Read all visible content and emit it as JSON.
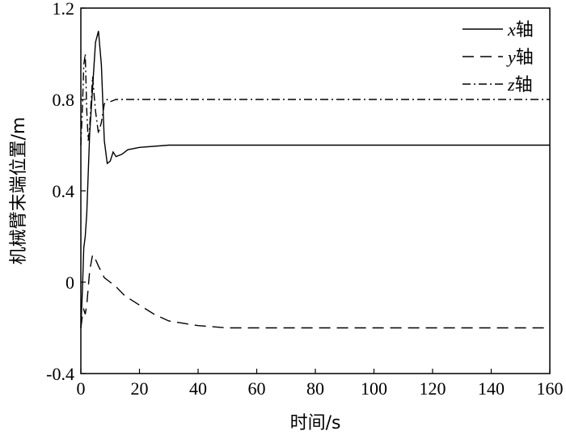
{
  "chart_data": {
    "type": "line",
    "xlabel": "时间/s",
    "ylabel": "机械臂末端位置/m",
    "xlim": [
      0,
      160
    ],
    "ylim": [
      -0.4,
      1.2
    ],
    "x_ticks": [
      "0",
      "20",
      "40",
      "60",
      "80",
      "100",
      "120",
      "140",
      "160"
    ],
    "y_ticks": [
      "-0.4",
      "0",
      "0.4",
      "0.8",
      "1.2"
    ],
    "grid": false,
    "legend_position": "top-right",
    "series": [
      {
        "name_var": "x",
        "name_suffix": "轴",
        "dash": "solid",
        "x": [
          0,
          0.5,
          1,
          1.5,
          2,
          3,
          4,
          5,
          6,
          7,
          8,
          9,
          10,
          11,
          12,
          14,
          16,
          20,
          30,
          40,
          60,
          80,
          100,
          120,
          140,
          160
        ],
        "y": [
          -0.2,
          -0.05,
          0.15,
          0.2,
          0.3,
          0.65,
          0.85,
          1.05,
          1.1,
          0.95,
          0.62,
          0.52,
          0.53,
          0.57,
          0.55,
          0.56,
          0.58,
          0.59,
          0.6,
          0.6,
          0.6,
          0.6,
          0.6,
          0.6,
          0.6,
          0.6
        ]
      },
      {
        "name_var": "y",
        "name_suffix": "轴",
        "dash": "dashed",
        "x": [
          0,
          0.5,
          1,
          1.5,
          2,
          3,
          4,
          5,
          6,
          8,
          10,
          12,
          15,
          20,
          25,
          30,
          40,
          50,
          60,
          80,
          100,
          120,
          140,
          160
        ],
        "y": [
          -0.2,
          -0.15,
          -0.12,
          -0.14,
          -0.1,
          0.05,
          0.12,
          0.1,
          0.07,
          0.02,
          0.0,
          -0.02,
          -0.06,
          -0.1,
          -0.14,
          -0.17,
          -0.19,
          -0.2,
          -0.2,
          -0.2,
          -0.2,
          -0.2,
          -0.2,
          -0.2
        ]
      },
      {
        "name_var": "z",
        "name_suffix": "轴",
        "dash": "dashdot",
        "x": [
          0,
          0.5,
          1,
          1.5,
          2,
          2.5,
          3,
          4,
          5,
          6,
          7,
          8,
          9,
          10,
          12,
          15,
          20,
          40,
          60,
          80,
          100,
          120,
          140,
          160
        ],
        "y": [
          0.6,
          0.75,
          0.95,
          1.0,
          0.75,
          0.62,
          0.68,
          0.9,
          0.75,
          0.65,
          0.7,
          0.78,
          0.8,
          0.79,
          0.8,
          0.8,
          0.8,
          0.8,
          0.8,
          0.8,
          0.8,
          0.8,
          0.8,
          0.8
        ]
      }
    ]
  }
}
